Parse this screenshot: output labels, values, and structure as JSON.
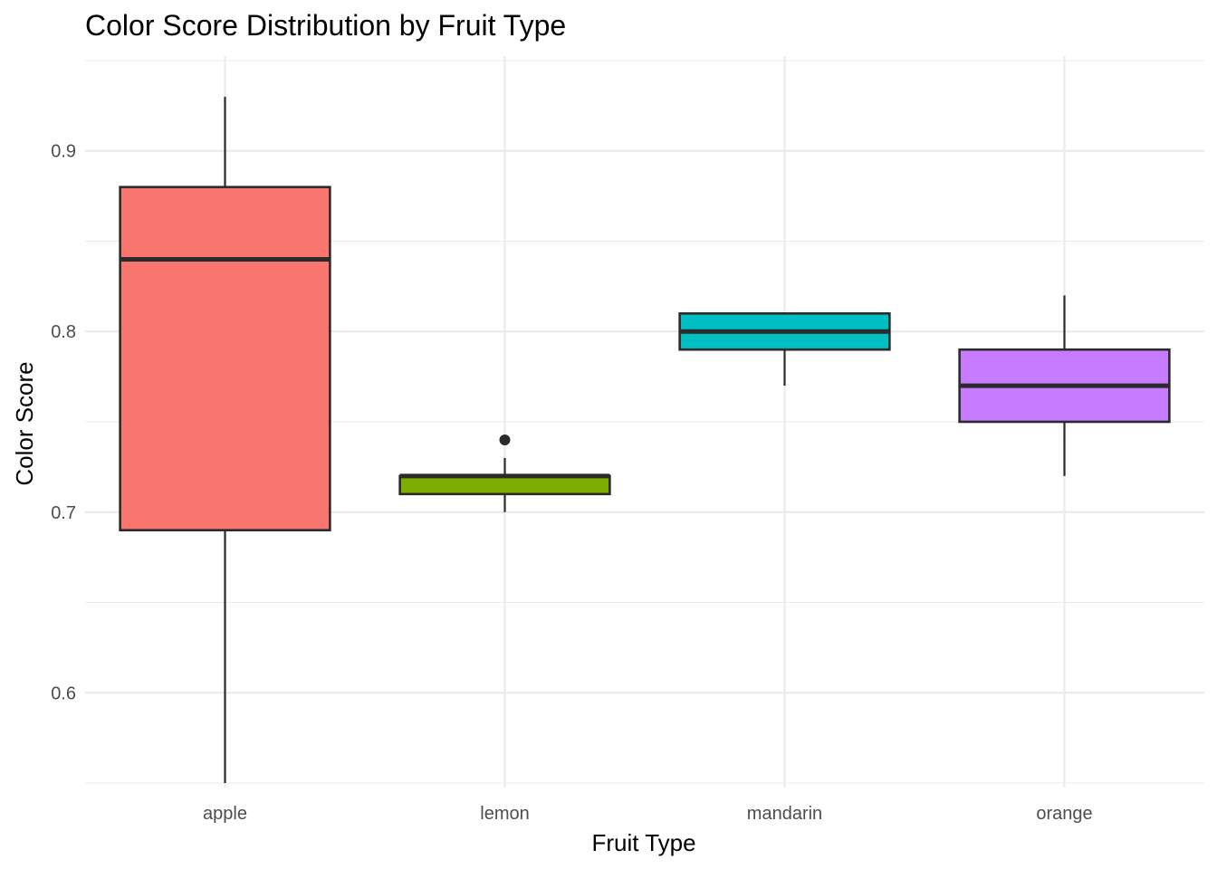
{
  "chart_data": {
    "type": "boxplot",
    "title": "Color Score Distribution by Fruit Type",
    "xlabel": "Fruit Type",
    "ylabel": "Color Score",
    "ylim": [
      0.5475,
      0.9525
    ],
    "yticks": [
      0.6,
      0.7,
      0.8,
      0.9
    ],
    "ytick_labels": [
      "0.6",
      "0.7",
      "0.8",
      "0.9"
    ],
    "grid": true,
    "legend": "none",
    "categories": [
      "apple",
      "lemon",
      "mandarin",
      "orange"
    ],
    "boxes": [
      {
        "category": "apple",
        "color": "#F8766D",
        "whisker_low": 0.55,
        "q1": 0.69,
        "median": 0.84,
        "q3": 0.88,
        "whisker_high": 0.93,
        "outliers": []
      },
      {
        "category": "lemon",
        "color": "#7CAE00",
        "whisker_low": 0.7,
        "q1": 0.71,
        "median": 0.72,
        "q3": 0.72,
        "whisker_high": 0.73,
        "outliers": [
          0.74
        ]
      },
      {
        "category": "mandarin",
        "color": "#00BFC4",
        "whisker_low": 0.77,
        "q1": 0.79,
        "median": 0.8,
        "q3": 0.81,
        "whisker_high": 0.81,
        "outliers": []
      },
      {
        "category": "orange",
        "color": "#C77CFF",
        "whisker_low": 0.72,
        "q1": 0.75,
        "median": 0.77,
        "q3": 0.79,
        "whisker_high": 0.82,
        "outliers": []
      }
    ]
  }
}
